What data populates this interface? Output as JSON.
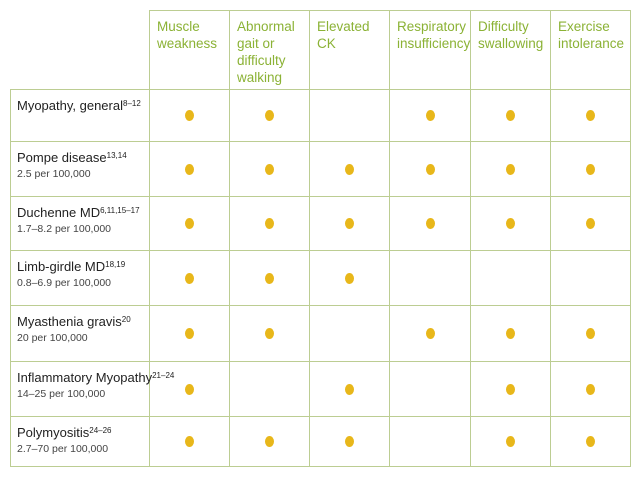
{
  "columns": [
    "Muscle weakness",
    "Abnormal gait or difficulty walking",
    "Elevated CK",
    "Respiratory insufficiency",
    "Difficulty swallowing",
    "Exercise intolerance"
  ],
  "rows": [
    {
      "name": "Myopathy, general",
      "refs": "8–12",
      "prevalence": "",
      "marks": [
        true,
        true,
        false,
        true,
        true,
        true
      ]
    },
    {
      "name": "Pompe disease",
      "refs": "13,14",
      "prevalence": "2.5 per 100,000",
      "marks": [
        true,
        true,
        true,
        true,
        true,
        true
      ]
    },
    {
      "name": "Duchenne MD",
      "refs": "6,11,15–17",
      "prevalence": "1.7–8.2 per 100,000",
      "marks": [
        true,
        true,
        true,
        true,
        true,
        true
      ]
    },
    {
      "name": "Limb-girdle MD",
      "refs": "18,19",
      "prevalence": "0.8–6.9 per 100,000",
      "marks": [
        true,
        true,
        true,
        false,
        false,
        false
      ]
    },
    {
      "name": "Myasthenia gravis",
      "refs": "20",
      "prevalence": "20 per 100,000",
      "marks": [
        true,
        true,
        false,
        true,
        true,
        true
      ]
    },
    {
      "name": "Inflammatory Myopathy",
      "refs": "21–24",
      "prevalence": "14–25 per 100,000",
      "marks": [
        true,
        false,
        true,
        false,
        true,
        true
      ]
    },
    {
      "name": "Polymyositis",
      "refs": "24–26",
      "prevalence": "2.7–70 per 100,000",
      "marks": [
        true,
        true,
        true,
        false,
        true,
        true
      ]
    }
  ],
  "colors": {
    "header_text": "#8bb235",
    "grid_line": "#bccd92",
    "dot": "#e8b71a"
  }
}
